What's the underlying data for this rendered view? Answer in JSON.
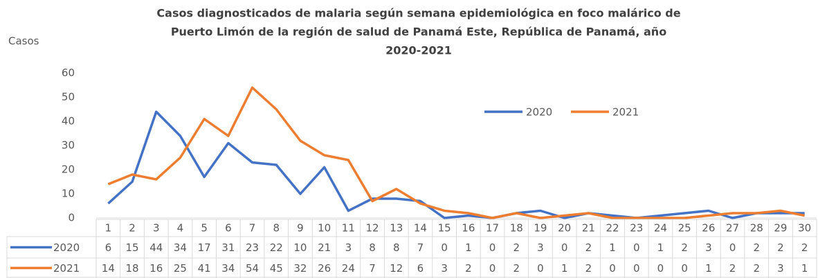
{
  "chart_data": {
    "type": "line",
    "title_lines": [
      "Casos diagnosticados de malaria según semana epidemiológica en foco malárico de",
      "Puerto Limón de la región de salud de Panamá Este, República de Panamá, año",
      "2020-2021"
    ],
    "y_label": "Casos",
    "categories": [
      "1",
      "2",
      "3",
      "4",
      "5",
      "6",
      "7",
      "8",
      "9",
      "10",
      "11",
      "12",
      "13",
      "14",
      "15",
      "16",
      "17",
      "18",
      "19",
      "20",
      "21",
      "22",
      "23",
      "24",
      "25",
      "26",
      "27",
      "28",
      "29",
      "30"
    ],
    "series": [
      {
        "name": "2020",
        "color": "#4472c4",
        "values": [
          6,
          15,
          44,
          34,
          17,
          31,
          23,
          22,
          10,
          21,
          3,
          8,
          8,
          7,
          0,
          1,
          0,
          2,
          3,
          0,
          2,
          1,
          0,
          1,
          2,
          3,
          0,
          2,
          2,
          2
        ]
      },
      {
        "name": "2021",
        "color": "#ed7d31",
        "values": [
          14,
          18,
          16,
          25,
          41,
          34,
          54,
          45,
          32,
          26,
          24,
          7,
          12,
          6,
          3,
          2,
          0,
          2,
          0,
          1,
          2,
          0,
          0,
          0,
          0,
          1,
          2,
          2,
          3,
          1
        ]
      }
    ],
    "ylim": [
      0,
      60
    ],
    "yticks": [
      0,
      10,
      20,
      30,
      40,
      50,
      60
    ],
    "grid": false,
    "legend": "top-right",
    "data_table": true
  }
}
